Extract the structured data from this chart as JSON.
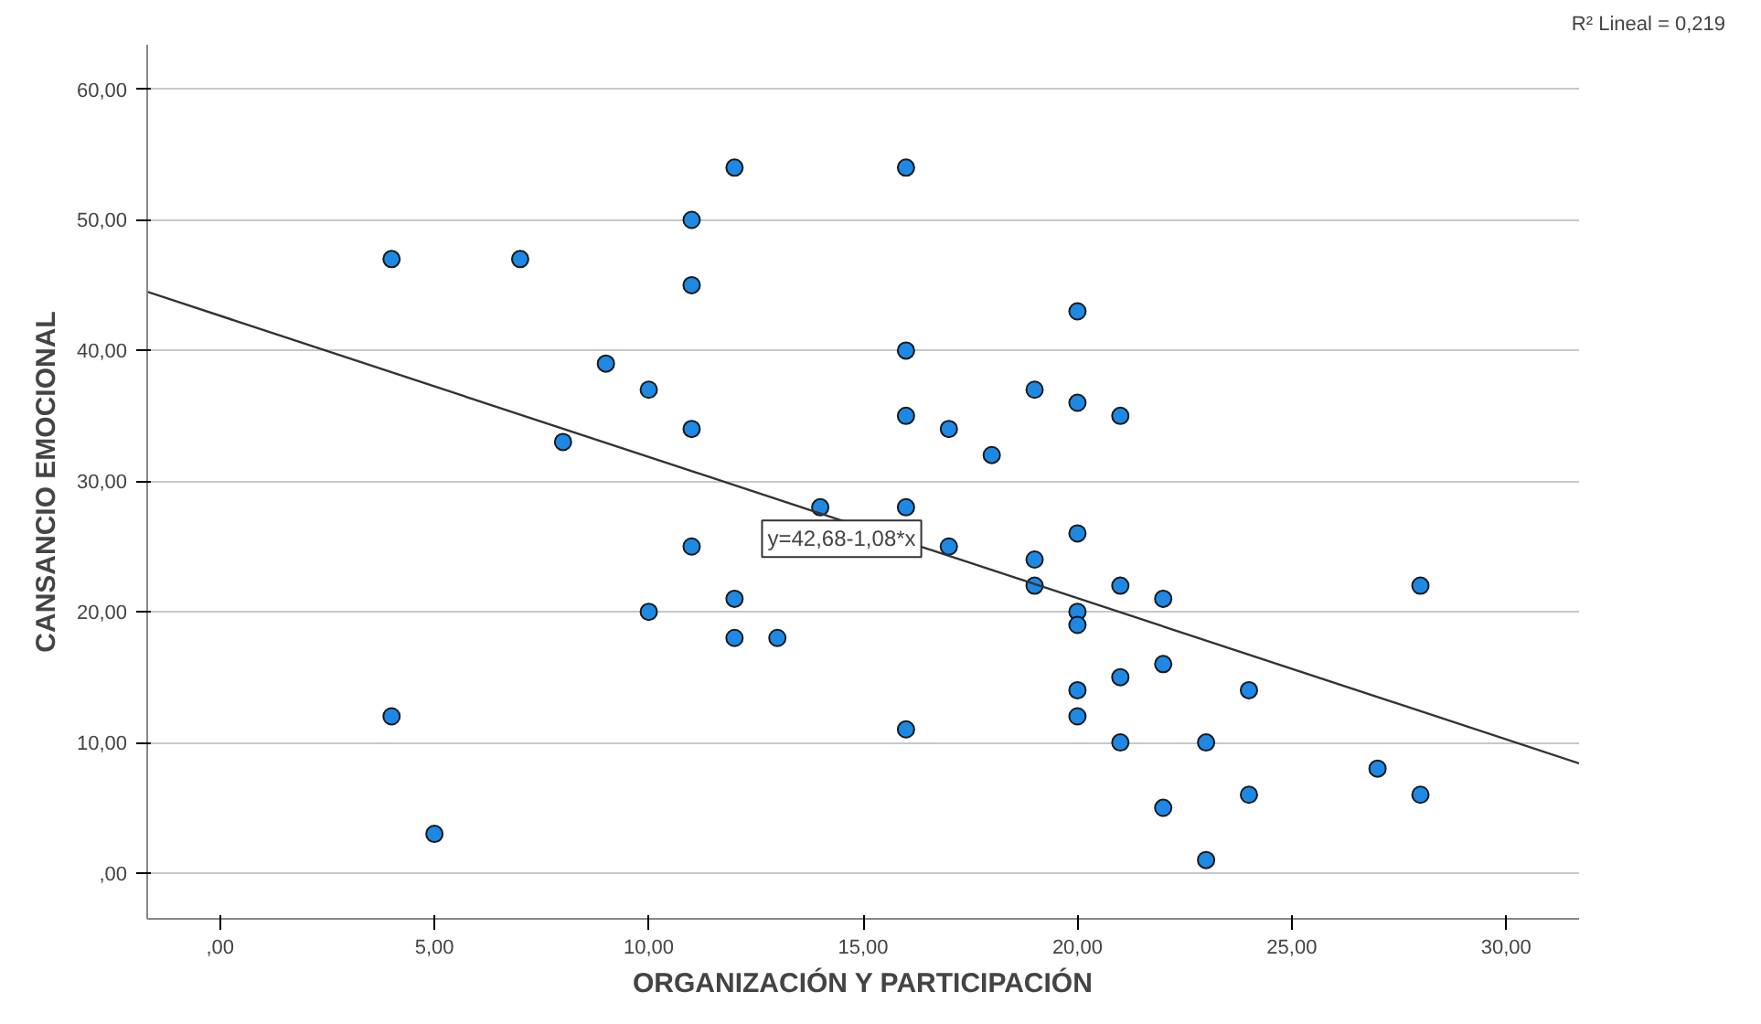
{
  "chart_data": {
    "type": "scatter",
    "xlabel": "ORGANIZACIÓN Y PARTICIPACIÓN",
    "ylabel": "CANSANCIO EMOCIONAL",
    "xlim": [
      -1.7,
      31.7
    ],
    "ylim": [
      -3.5,
      63.4
    ],
    "xticks": [
      {
        "value": 0,
        "label": ",00"
      },
      {
        "value": 5,
        "label": "5,00"
      },
      {
        "value": 10,
        "label": "10,00"
      },
      {
        "value": 15,
        "label": "15,00"
      },
      {
        "value": 20,
        "label": "20,00"
      },
      {
        "value": 25,
        "label": "25,00"
      },
      {
        "value": 30,
        "label": "30,00"
      }
    ],
    "yticks": [
      {
        "value": 0,
        "label": ",00"
      },
      {
        "value": 10,
        "label": "10,00"
      },
      {
        "value": 20,
        "label": "20,00"
      },
      {
        "value": 30,
        "label": "30,00"
      },
      {
        "value": 40,
        "label": "40,00"
      },
      {
        "value": 50,
        "label": "50,00"
      },
      {
        "value": 60,
        "label": "60,00"
      }
    ],
    "grid": "y",
    "marker": "circle",
    "series": [
      {
        "color": "#1e88e5",
        "x": [
          4,
          7,
          5,
          4,
          8,
          9,
          10,
          10,
          11,
          11,
          11,
          11,
          12,
          12,
          12,
          13,
          14,
          16,
          16,
          16,
          16,
          16,
          17,
          17,
          18,
          19,
          19,
          19,
          20,
          20,
          20,
          20,
          20,
          20,
          20,
          21,
          21,
          21,
          21,
          22,
          22,
          22,
          23,
          23,
          24,
          24,
          27,
          28,
          28
        ],
        "values": [
          47,
          47,
          3,
          12,
          33,
          39,
          37,
          20,
          50,
          45,
          34,
          25,
          54,
          21,
          18,
          18,
          28,
          54,
          40,
          35,
          28,
          11,
          34,
          25,
          32,
          37,
          24,
          22,
          43,
          36,
          26,
          20,
          19,
          14,
          12,
          35,
          22,
          15,
          10,
          21,
          16,
          5,
          10,
          1,
          14,
          6,
          8,
          22,
          6
        ]
      },
      {
        "type": "line",
        "marker": "none",
        "color": "#333333",
        "x": [
          -1.7,
          31.7
        ],
        "values": [
          44.5,
          8.4
        ]
      }
    ],
    "annotations": [
      "y=42,68-1,08*x",
      "R² Lineal = 0,219"
    ]
  }
}
